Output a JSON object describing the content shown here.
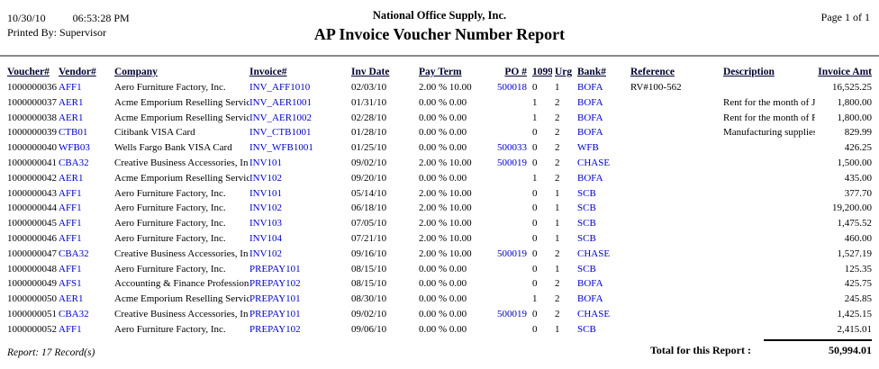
{
  "header": {
    "date": "10/30/10",
    "time": "06:53:28 PM",
    "printed_by": "Printed By: Supervisor",
    "company": "National Office Supply, Inc.",
    "title": "AP Invoice Voucher Number Report",
    "page": "Page 1 of 1"
  },
  "table": {
    "columns": [
      "Voucher#",
      "Vendor#",
      "Company",
      "Invoice#",
      "Inv Date",
      "Pay Term",
      "PO #",
      "1099",
      "Urg",
      "Bank#",
      "Reference",
      "Description",
      "Invoice Amt"
    ],
    "rows": [
      [
        "1000000036",
        "AFF1",
        "Aero Furniture Factory, Inc.",
        "INV_AFF1010",
        "02/03/10",
        "2.00 % 10.00",
        "500018",
        "0",
        "1",
        "BOFA",
        "RV#100-562",
        "",
        "16,525.25"
      ],
      [
        "1000000037",
        "AER1",
        "Acme Emporium Reselling Servic",
        "INV_AER1001",
        "01/31/10",
        "0.00 % 0.00",
        "",
        "1",
        "2",
        "BOFA",
        "",
        "Rent for the month of Ja",
        "1,800.00"
      ],
      [
        "1000000038",
        "AER1",
        "Acme Emporium Reselling Servic",
        "INV_AER1002",
        "02/28/10",
        "0.00 % 0.00",
        "",
        "1",
        "2",
        "BOFA",
        "",
        "Rent for the month of F",
        "1,800.00"
      ],
      [
        "1000000039",
        "CTB01",
        "Citibank VISA Card",
        "INV_CTB1001",
        "01/28/10",
        "0.00 % 0.00",
        "",
        "0",
        "2",
        "BOFA",
        "",
        "Manufacturing supplies",
        "829.99"
      ],
      [
        "1000000040",
        "WFB03",
        "Wells Fargo Bank VISA Card",
        "INV_WFB1001",
        "01/25/10",
        "0.00 % 0.00",
        "500033",
        "0",
        "2",
        "WFB",
        "",
        "",
        "426.25"
      ],
      [
        "1000000041",
        "CBA32",
        "Creative Business Accessories, In",
        "INV101",
        "09/02/10",
        "2.00 % 10.00",
        "500019",
        "0",
        "2",
        "CHASE",
        "",
        "",
        "1,500.00"
      ],
      [
        "1000000042",
        "AER1",
        "Acme Emporium Reselling Servic",
        "INV102",
        "09/20/10",
        "0.00 % 0.00",
        "",
        "1",
        "2",
        "BOFA",
        "",
        "",
        "435.00"
      ],
      [
        "1000000043",
        "AFF1",
        "Aero Furniture Factory, Inc.",
        "INV101",
        "05/14/10",
        "2.00 % 10.00",
        "",
        "0",
        "1",
        "SCB",
        "",
        "",
        "377.70"
      ],
      [
        "1000000044",
        "AFF1",
        "Aero Furniture Factory, Inc.",
        "INV102",
        "06/18/10",
        "2.00 % 10.00",
        "",
        "0",
        "1",
        "SCB",
        "",
        "",
        "19,200.00"
      ],
      [
        "1000000045",
        "AFF1",
        "Aero Furniture Factory, Inc.",
        "INV103",
        "07/05/10",
        "2.00 % 10.00",
        "",
        "0",
        "1",
        "SCB",
        "",
        "",
        "1,475.52"
      ],
      [
        "1000000046",
        "AFF1",
        "Aero Furniture Factory, Inc.",
        "INV104",
        "07/21/10",
        "2.00 % 10.00",
        "",
        "0",
        "1",
        "SCB",
        "",
        "",
        "460.00"
      ],
      [
        "1000000047",
        "CBA32",
        "Creative Business Accessories, In",
        "INV102",
        "09/16/10",
        "2.00 % 10.00",
        "500019",
        "0",
        "2",
        "CHASE",
        "",
        "",
        "1,527.19"
      ],
      [
        "1000000048",
        "AFF1",
        "Aero Furniture Factory, Inc.",
        "PREPAY101",
        "08/15/10",
        "0.00 % 0.00",
        "",
        "0",
        "1",
        "SCB",
        "",
        "",
        "125.35"
      ],
      [
        "1000000049",
        "AFS1",
        "Accounting & Finance Profession",
        "PREPAY102",
        "08/15/10",
        "0.00 % 0.00",
        "",
        "0",
        "2",
        "BOFA",
        "",
        "",
        "425.75"
      ],
      [
        "1000000050",
        "AER1",
        "Acme Emporium Reselling Servic",
        "PREPAY101",
        "08/30/10",
        "0.00 % 0.00",
        "",
        "1",
        "2",
        "BOFA",
        "",
        "",
        "245.85"
      ],
      [
        "1000000051",
        "CBA32",
        "Creative Business Accessories, In",
        "PREPAY101",
        "09/02/10",
        "0.00 % 0.00",
        "500019",
        "0",
        "2",
        "CHASE",
        "",
        "",
        "1,425.15"
      ],
      [
        "1000000052",
        "AFF1",
        "Aero Furniture Factory, Inc.",
        "PREPAY102",
        "09/06/10",
        "0.00 % 0.00",
        "",
        "0",
        "1",
        "SCB",
        "",
        "",
        "2,415.01"
      ]
    ]
  },
  "footer": {
    "record_count": "Report: 17 Record(s)",
    "total_label": "Total for this Report :",
    "total_amount": "50,994.01"
  },
  "colors": {
    "link_blue": "#0000cc",
    "header_navy": "#000033"
  }
}
